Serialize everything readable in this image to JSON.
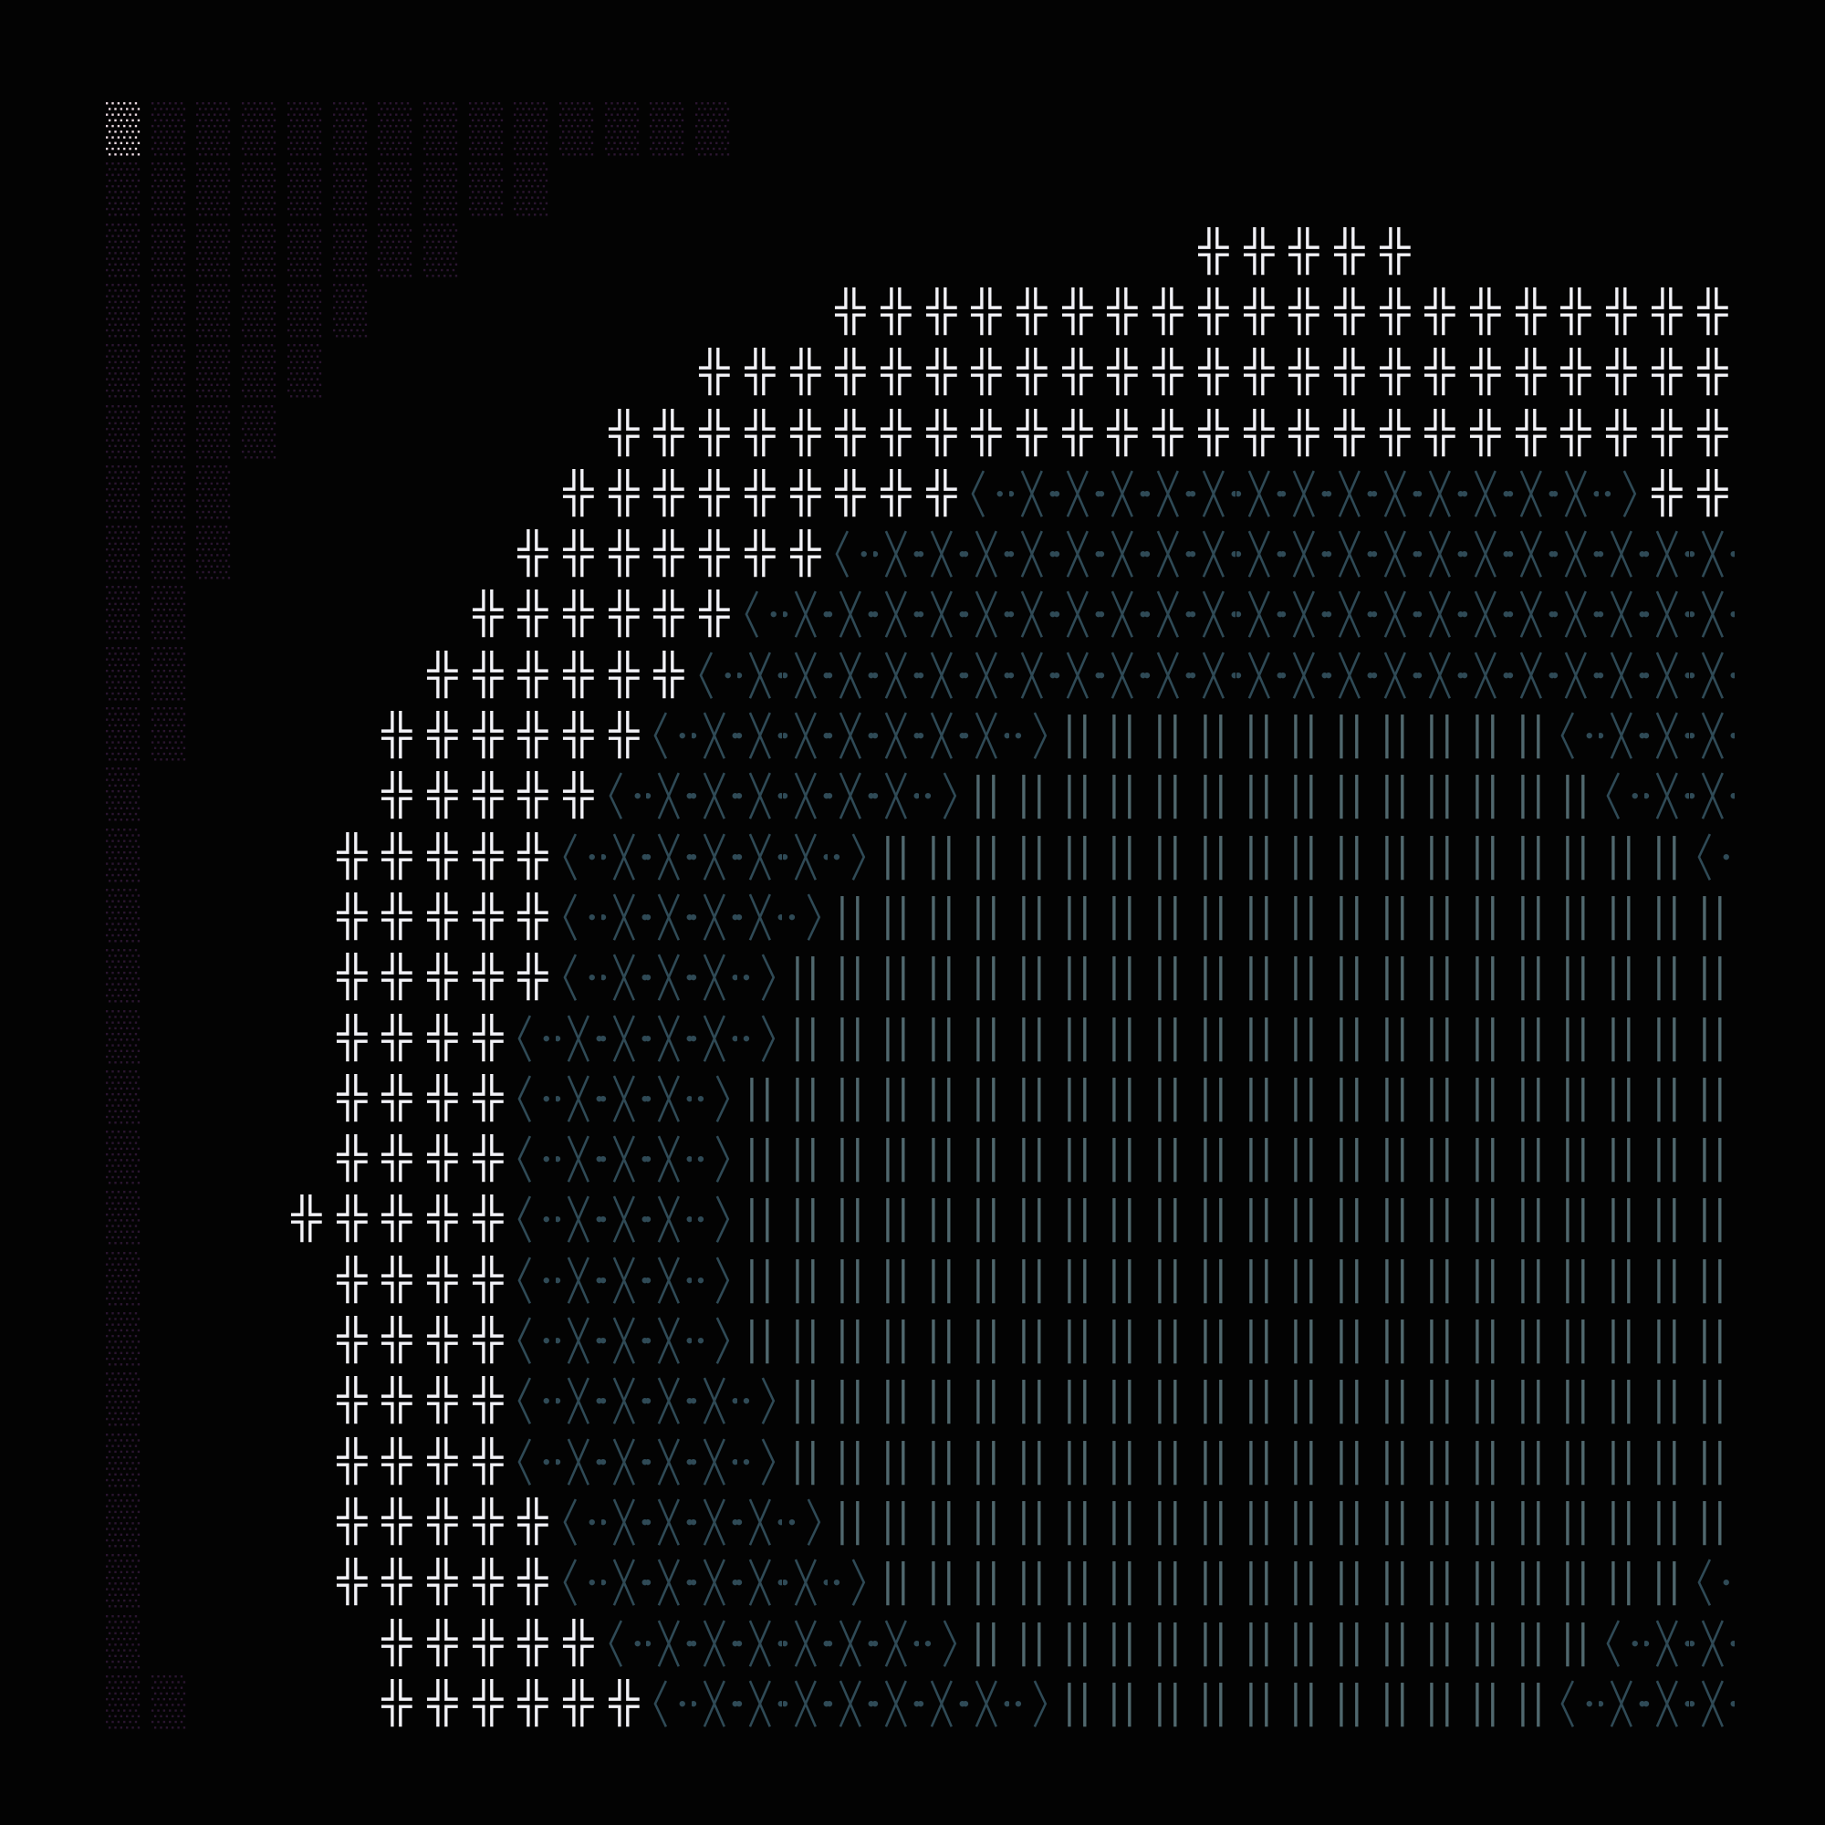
{
  "art": {
    "columns": 36,
    "palette": {
      "background": "#030303",
      "dots": "#2a1530",
      "dots_bright": "#e9d6e0",
      "cross": "#f2f2f7",
      "x_glyph": "#2f4a56",
      "bars": "#50686e"
    },
    "glyph_legend": {
      ".": "empty",
      "d": "dim-dot-pattern",
      "D": "bright-dot-pattern",
      "#": "double-cross-glyph",
      "x": "x-glyph",
      "<": "x-glyph-left-bracket",
      ">": "x-glyph-right-bracket",
      "|": "double-bar-glyph"
    },
    "rows": [
      [
        [
          "D",
          1
        ],
        [
          "d",
          13
        ],
        [
          ".",
          22
        ]
      ],
      [
        [
          "d",
          10
        ],
        [
          ".",
          26
        ]
      ],
      [
        [
          "d",
          8
        ],
        [
          ".",
          16
        ],
        [
          "#",
          5
        ],
        [
          ".",
          7
        ]
      ],
      [
        [
          "d",
          6
        ],
        [
          ".",
          10
        ],
        [
          "#",
          20
        ]
      ],
      [
        [
          "d",
          5
        ],
        [
          ".",
          8
        ],
        [
          "#",
          23
        ]
      ],
      [
        [
          "d",
          4
        ],
        [
          ".",
          7
        ],
        [
          "#",
          25
        ]
      ],
      [
        [
          "d",
          3
        ],
        [
          ".",
          7
        ],
        [
          "#",
          9
        ],
        [
          "<",
          1
        ],
        [
          "x",
          13
        ],
        [
          ">",
          1
        ],
        [
          "#",
          2
        ]
      ],
      [
        [
          "d",
          3
        ],
        [
          ".",
          6
        ],
        [
          "#",
          7
        ],
        [
          "<",
          1
        ],
        [
          "x",
          19
        ]
      ],
      [
        [
          "d",
          2
        ],
        [
          ".",
          6
        ],
        [
          "#",
          6
        ],
        [
          "<",
          1
        ],
        [
          "x",
          21
        ]
      ],
      [
        [
          "d",
          2
        ],
        [
          ".",
          5
        ],
        [
          "#",
          6
        ],
        [
          "<",
          1
        ],
        [
          "x",
          22
        ]
      ],
      [
        [
          "d",
          2
        ],
        [
          ".",
          4
        ],
        [
          "#",
          6
        ],
        [
          "<",
          1
        ],
        [
          "x",
          7
        ],
        [
          ">",
          1
        ],
        [
          "|",
          11
        ],
        [
          "<",
          1
        ],
        [
          "x",
          3
        ]
      ],
      [
        [
          "d",
          1
        ],
        [
          ".",
          5
        ],
        [
          "#",
          5
        ],
        [
          "<",
          1
        ],
        [
          "x",
          6
        ],
        [
          ">",
          1
        ],
        [
          "|",
          14
        ],
        [
          "<",
          1
        ],
        [
          "x",
          2
        ]
      ],
      [
        [
          "d",
          1
        ],
        [
          ".",
          4
        ],
        [
          "#",
          5
        ],
        [
          "<",
          1
        ],
        [
          "x",
          5
        ],
        [
          ">",
          1
        ],
        [
          "|",
          18
        ],
        [
          "<",
          1
        ]
      ],
      [
        [
          "d",
          1
        ],
        [
          ".",
          4
        ],
        [
          "#",
          5
        ],
        [
          "<",
          1
        ],
        [
          "x",
          4
        ],
        [
          ">",
          1
        ],
        [
          "|",
          20
        ]
      ],
      [
        [
          "d",
          1
        ],
        [
          ".",
          4
        ],
        [
          "#",
          5
        ],
        [
          "<",
          1
        ],
        [
          "x",
          3
        ],
        [
          ">",
          1
        ],
        [
          "|",
          21
        ]
      ],
      [
        [
          "d",
          1
        ],
        [
          ".",
          4
        ],
        [
          "#",
          4
        ],
        [
          "<",
          1
        ],
        [
          "x",
          4
        ],
        [
          ">",
          1
        ],
        [
          "|",
          21
        ]
      ],
      [
        [
          "d",
          1
        ],
        [
          ".",
          4
        ],
        [
          "#",
          4
        ],
        [
          "<",
          1
        ],
        [
          "x",
          3
        ],
        [
          ">",
          1
        ],
        [
          "|",
          22
        ]
      ],
      [
        [
          "d",
          1
        ],
        [
          ".",
          4
        ],
        [
          "#",
          4
        ],
        [
          "<",
          1
        ],
        [
          "x",
          3
        ],
        [
          ">",
          1
        ],
        [
          "|",
          22
        ]
      ],
      [
        [
          "d",
          1
        ],
        [
          ".",
          3
        ],
        [
          "#",
          5
        ],
        [
          "<",
          1
        ],
        [
          "x",
          3
        ],
        [
          ">",
          1
        ],
        [
          "|",
          22
        ]
      ],
      [
        [
          "d",
          1
        ],
        [
          ".",
          4
        ],
        [
          "#",
          4
        ],
        [
          "<",
          1
        ],
        [
          "x",
          3
        ],
        [
          ">",
          1
        ],
        [
          "|",
          22
        ]
      ],
      [
        [
          "d",
          1
        ],
        [
          ".",
          4
        ],
        [
          "#",
          4
        ],
        [
          "<",
          1
        ],
        [
          "x",
          3
        ],
        [
          ">",
          1
        ],
        [
          "|",
          22
        ]
      ],
      [
        [
          "d",
          1
        ],
        [
          ".",
          4
        ],
        [
          "#",
          4
        ],
        [
          "<",
          1
        ],
        [
          "x",
          4
        ],
        [
          ">",
          1
        ],
        [
          "|",
          21
        ]
      ],
      [
        [
          "d",
          1
        ],
        [
          ".",
          4
        ],
        [
          "#",
          4
        ],
        [
          "<",
          1
        ],
        [
          "x",
          4
        ],
        [
          ">",
          1
        ],
        [
          "|",
          21
        ]
      ],
      [
        [
          "d",
          1
        ],
        [
          ".",
          4
        ],
        [
          "#",
          5
        ],
        [
          "<",
          1
        ],
        [
          "x",
          4
        ],
        [
          ">",
          1
        ],
        [
          "|",
          20
        ]
      ],
      [
        [
          "d",
          1
        ],
        [
          ".",
          4
        ],
        [
          "#",
          5
        ],
        [
          "<",
          1
        ],
        [
          "x",
          5
        ],
        [
          ">",
          1
        ],
        [
          "|",
          18
        ],
        [
          "<",
          1
        ]
      ],
      [
        [
          "d",
          1
        ],
        [
          ".",
          5
        ],
        [
          "#",
          5
        ],
        [
          "<",
          1
        ],
        [
          "x",
          6
        ],
        [
          ">",
          1
        ],
        [
          "|",
          14
        ],
        [
          "<",
          1
        ],
        [
          "x",
          2
        ]
      ],
      [
        [
          "d",
          2
        ],
        [
          ".",
          4
        ],
        [
          "#",
          6
        ],
        [
          "<",
          1
        ],
        [
          "x",
          7
        ],
        [
          ">",
          1
        ],
        [
          "|",
          11
        ],
        [
          "<",
          1
        ],
        [
          "x",
          3
        ]
      ]
    ]
  }
}
